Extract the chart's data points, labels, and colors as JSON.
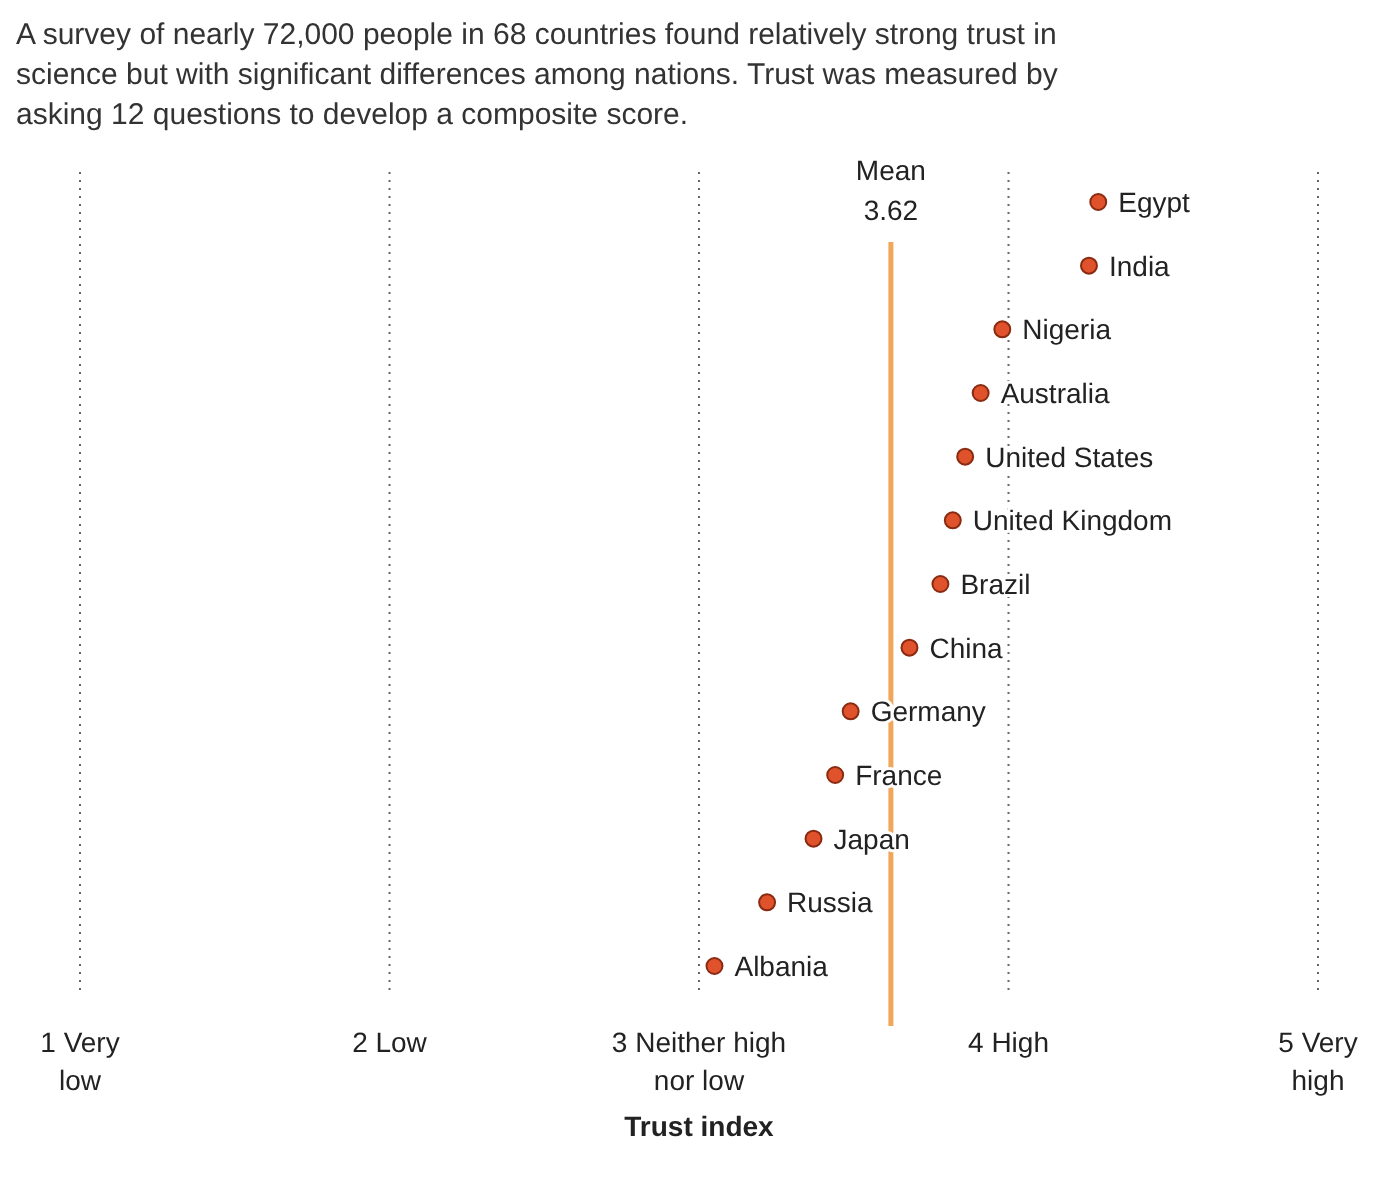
{
  "chart_data": {
    "type": "scatter",
    "orientation": "horizontal",
    "title": "A survey of nearly 72,000 people in 68 countries found relatively strong trust in science but with significant differences among nations. Trust was measured by asking 12 questions to develop a composite score.",
    "xlabel": "Trust index",
    "categories": [
      "Egypt",
      "India",
      "Nigeria",
      "Australia",
      "United States",
      "United Kingdom",
      "Brazil",
      "China",
      "Germany",
      "France",
      "Japan",
      "Russia",
      "Albania"
    ],
    "values": [
      4.29,
      4.26,
      3.98,
      3.91,
      3.86,
      3.82,
      3.78,
      3.68,
      3.49,
      3.44,
      3.37,
      3.22,
      3.05
    ],
    "color": "#e0522b",
    "xlim": [
      1,
      5
    ],
    "xticks": [
      {
        "value": 1,
        "label": "1 Very low"
      },
      {
        "value": 2,
        "label": "2 Low"
      },
      {
        "value": 3,
        "label": "3 Neither high nor low"
      },
      {
        "value": 4,
        "label": "4 High"
      },
      {
        "value": 5,
        "label": "5 Very high"
      }
    ],
    "grid": "x",
    "marker": "circle",
    "ref_lines": [
      {
        "axis": "x",
        "value": 3.62,
        "label": "Mean 3.62",
        "color": "#f2a65a"
      }
    ]
  }
}
